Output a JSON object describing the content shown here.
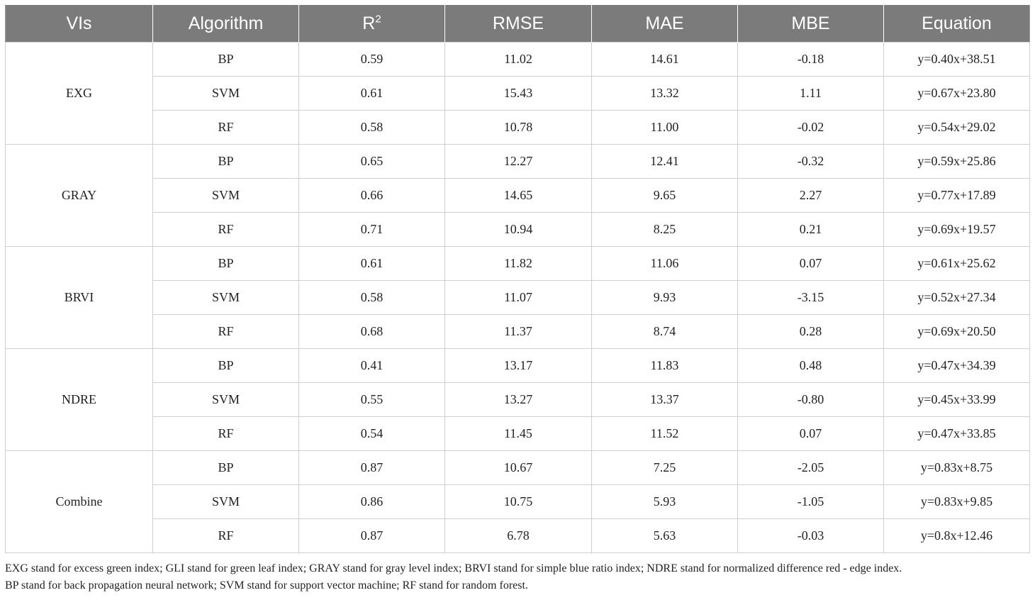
{
  "table": {
    "headers": {
      "vis": "VIs",
      "algorithm": "Algorithm",
      "r2_base": "R",
      "r2_sup": "2",
      "rmse": "RMSE",
      "mae": "MAE",
      "mbe": "MBE",
      "equation": "Equation"
    },
    "groups": [
      {
        "vi": "EXG",
        "rows": [
          {
            "algorithm": "BP",
            "r2": "0.59",
            "rmse": "11.02",
            "mae": "14.61",
            "mbe": "-0.18",
            "equation": "y=0.40x+38.51"
          },
          {
            "algorithm": "SVM",
            "r2": "0.61",
            "rmse": "15.43",
            "mae": "13.32",
            "mbe": "1.11",
            "equation": "y=0.67x+23.80"
          },
          {
            "algorithm": "RF",
            "r2": "0.58",
            "rmse": "10.78",
            "mae": "11.00",
            "mbe": "-0.02",
            "equation": "y=0.54x+29.02"
          }
        ]
      },
      {
        "vi": "GRAY",
        "rows": [
          {
            "algorithm": "BP",
            "r2": "0.65",
            "rmse": "12.27",
            "mae": "12.41",
            "mbe": "-0.32",
            "equation": "y=0.59x+25.86"
          },
          {
            "algorithm": "SVM",
            "r2": "0.66",
            "rmse": "14.65",
            "mae": "9.65",
            "mbe": "2.27",
            "equation": "y=0.77x+17.89"
          },
          {
            "algorithm": "RF",
            "r2": "0.71",
            "rmse": "10.94",
            "mae": "8.25",
            "mbe": "0.21",
            "equation": "y=0.69x+19.57"
          }
        ]
      },
      {
        "vi": "BRVI",
        "rows": [
          {
            "algorithm": "BP",
            "r2": "0.61",
            "rmse": "11.82",
            "mae": "11.06",
            "mbe": "0.07",
            "equation": "y=0.61x+25.62"
          },
          {
            "algorithm": "SVM",
            "r2": "0.58",
            "rmse": "11.07",
            "mae": "9.93",
            "mbe": "-3.15",
            "equation": "y=0.52x+27.34"
          },
          {
            "algorithm": "RF",
            "r2": "0.68",
            "rmse": "11.37",
            "mae": "8.74",
            "mbe": "0.28",
            "equation": "y=0.69x+20.50"
          }
        ]
      },
      {
        "vi": "NDRE",
        "rows": [
          {
            "algorithm": "BP",
            "r2": "0.41",
            "rmse": "13.17",
            "mae": "11.83",
            "mbe": "0.48",
            "equation": "y=0.47x+34.39"
          },
          {
            "algorithm": "SVM",
            "r2": "0.55",
            "rmse": "13.27",
            "mae": "13.37",
            "mbe": "-0.80",
            "equation": "y=0.45x+33.99"
          },
          {
            "algorithm": "RF",
            "r2": "0.54",
            "rmse": "11.45",
            "mae": "11.52",
            "mbe": "0.07",
            "equation": "y=0.47x+33.85"
          }
        ]
      },
      {
        "vi": "Combine",
        "rows": [
          {
            "algorithm": "BP",
            "r2": "0.87",
            "rmse": "10.67",
            "mae": "7.25",
            "mbe": "-2.05",
            "equation": "y=0.83x+8.75"
          },
          {
            "algorithm": "SVM",
            "r2": "0.86",
            "rmse": "10.75",
            "mae": "5.93",
            "mbe": "-1.05",
            "equation": "y=0.83x+9.85"
          },
          {
            "algorithm": "RF",
            "r2": "0.87",
            "rmse": "6.78",
            "mae": "5.63",
            "mbe": "-0.03",
            "equation": "y=0.8x+12.46"
          }
        ]
      }
    ]
  },
  "footnote": {
    "line1": "EXG stand for excess green index; GLI stand for green leaf index; GRAY stand for gray level index; BRVI stand for simple blue ratio index; NDRE stand for normalized difference red - edge index.",
    "line2": "BP stand for back propagation neural network; SVM stand for support vector machine; RF stand for random forest."
  }
}
